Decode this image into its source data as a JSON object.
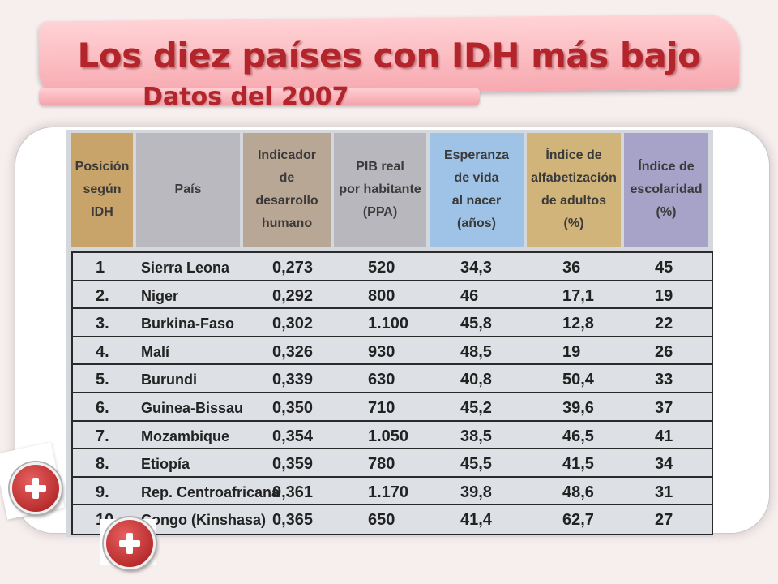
{
  "title": "Los diez países con IDH más bajo",
  "subtitle": "Datos del 2007",
  "colors": {
    "title_text": "#b3242b",
    "col_position": "#c9a46a",
    "col_country": "#b9b9bf",
    "col_hdi": "#b9a795",
    "col_gdp": "#b8b7bd",
    "col_life": "#9fc3e6",
    "col_literacy": "#d1b47a",
    "col_school": "#a7a3c8"
  },
  "table": {
    "headers": [
      "Posición\nsegún\nIDH",
      "País",
      "Indicador\nde\ndesarrollo\nhumano",
      "PIB real\npor habitante\n(PPA)",
      "Esperanza\nde vida\nal nacer\n(años)",
      "Índice de\nalfabetización\nde adultos\n(%)",
      "Índice de\nescolaridad\n(%)"
    ],
    "rows": [
      [
        "1",
        "Sierra Leona",
        "0,273",
        "520",
        "34,3",
        "36",
        "45"
      ],
      [
        "2.",
        "Niger",
        "0,292",
        "800",
        "46",
        "17,1",
        "19"
      ],
      [
        "3.",
        "Burkina-Faso",
        "0,302",
        "1.100",
        "45,8",
        "12,8",
        "22"
      ],
      [
        "4.",
        "Malí",
        "0,326",
        "930",
        "48,5",
        "19",
        "26"
      ],
      [
        "5.",
        "Burundi",
        "0,339",
        "630",
        "40,8",
        "50,4",
        "33"
      ],
      [
        "6.",
        "Guinea-Bissau",
        "0,350",
        "710",
        "45,2",
        "39,6",
        "37"
      ],
      [
        "7.",
        "Mozambique",
        "0,354",
        "1.050",
        "38,5",
        "46,5",
        "41"
      ],
      [
        "8.",
        "Etiopía",
        "0,359",
        "780",
        "45,5",
        "41,5",
        "34"
      ],
      [
        "9.",
        "Rep. Centroafricana",
        "0,361",
        "1.170",
        "39,8",
        "48,6",
        "31"
      ],
      [
        "10.",
        "Congo (Kinshasa)",
        "0,365",
        "650",
        "41,4",
        "62,7",
        "27"
      ]
    ]
  },
  "icons": [
    "plus-circle-icon",
    "plus-circle-icon"
  ]
}
